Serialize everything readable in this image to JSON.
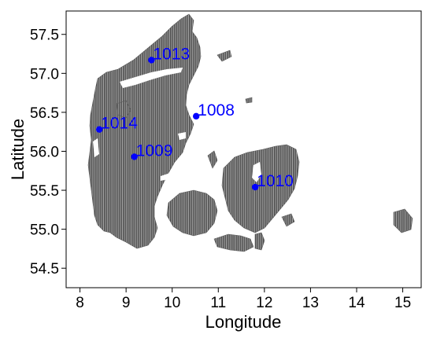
{
  "chart_data": {
    "type": "scatter",
    "xlabel": "Longitude",
    "ylabel": "Latitude",
    "xlim": [
      7.7,
      15.4
    ],
    "ylim": [
      54.25,
      57.8
    ],
    "xticks": [
      8,
      9,
      10,
      11,
      12,
      13,
      14,
      15
    ],
    "yticks": [
      54.5,
      55.0,
      55.5,
      56.0,
      56.5,
      57.0,
      57.5
    ],
    "xtick_labels": [
      "8",
      "9",
      "10",
      "11",
      "12",
      "13",
      "14",
      "15"
    ],
    "ytick_labels": [
      "54.5",
      "55.0",
      "55.5",
      "56.0",
      "56.5",
      "57.0",
      "57.5"
    ],
    "grid": false,
    "land_color": "#555555",
    "point_color": "#0000ff",
    "label_color": "#0000ff",
    "stations": [
      {
        "label": "1013",
        "lon": 9.55,
        "lat": 57.17
      },
      {
        "label": "1008",
        "lon": 10.52,
        "lat": 56.45
      },
      {
        "label": "1014",
        "lon": 8.42,
        "lat": 56.28
      },
      {
        "label": "1009",
        "lon": 9.18,
        "lat": 55.93
      },
      {
        "label": "1010",
        "lon": 11.8,
        "lat": 55.54
      }
    ]
  }
}
